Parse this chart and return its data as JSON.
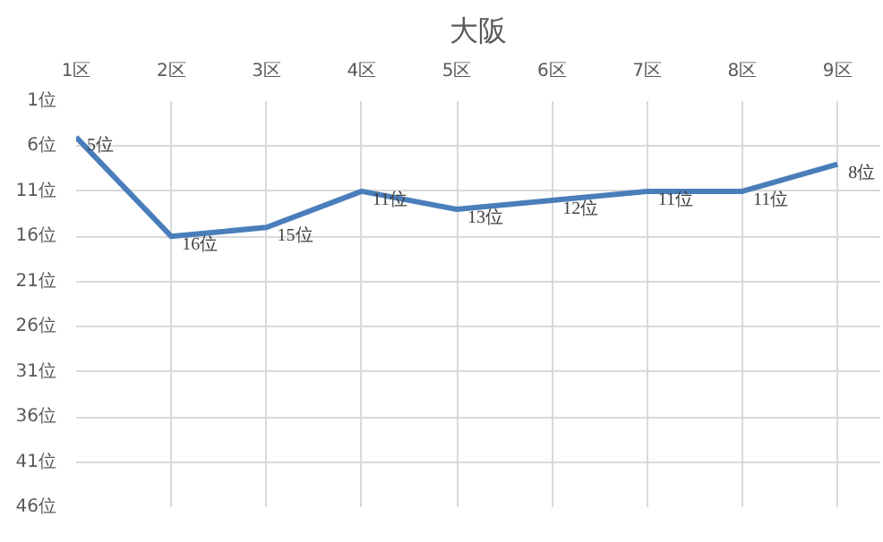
{
  "chart_data": {
    "type": "line",
    "title": "大阪",
    "categories": [
      "1区",
      "2区",
      "3区",
      "4区",
      "5区",
      "6区",
      "7区",
      "8区",
      "9区"
    ],
    "series": [
      {
        "color": "#4a7ebb",
        "values": [
          5,
          16,
          15,
          11,
          13,
          12,
          11,
          11,
          8
        ],
        "value_labels": [
          "5位",
          "16位",
          "15位",
          "11位",
          "13位",
          "12位",
          "11位",
          "11位",
          "8位"
        ]
      }
    ],
    "ylim": [
      46,
      1
    ],
    "yticks": [
      {
        "value": 1,
        "label": "1位"
      },
      {
        "value": 6,
        "label": "6位"
      },
      {
        "value": 11,
        "label": "11位"
      },
      {
        "value": 16,
        "label": "16位"
      },
      {
        "value": 21,
        "label": "21位"
      },
      {
        "value": 26,
        "label": "26位"
      },
      {
        "value": 31,
        "label": "31位"
      },
      {
        "value": 36,
        "label": "36位"
      },
      {
        "value": 41,
        "label": "41位"
      },
      {
        "value": 46,
        "label": "46位"
      }
    ],
    "grid": true,
    "marker": "none",
    "line_style": "solid"
  }
}
